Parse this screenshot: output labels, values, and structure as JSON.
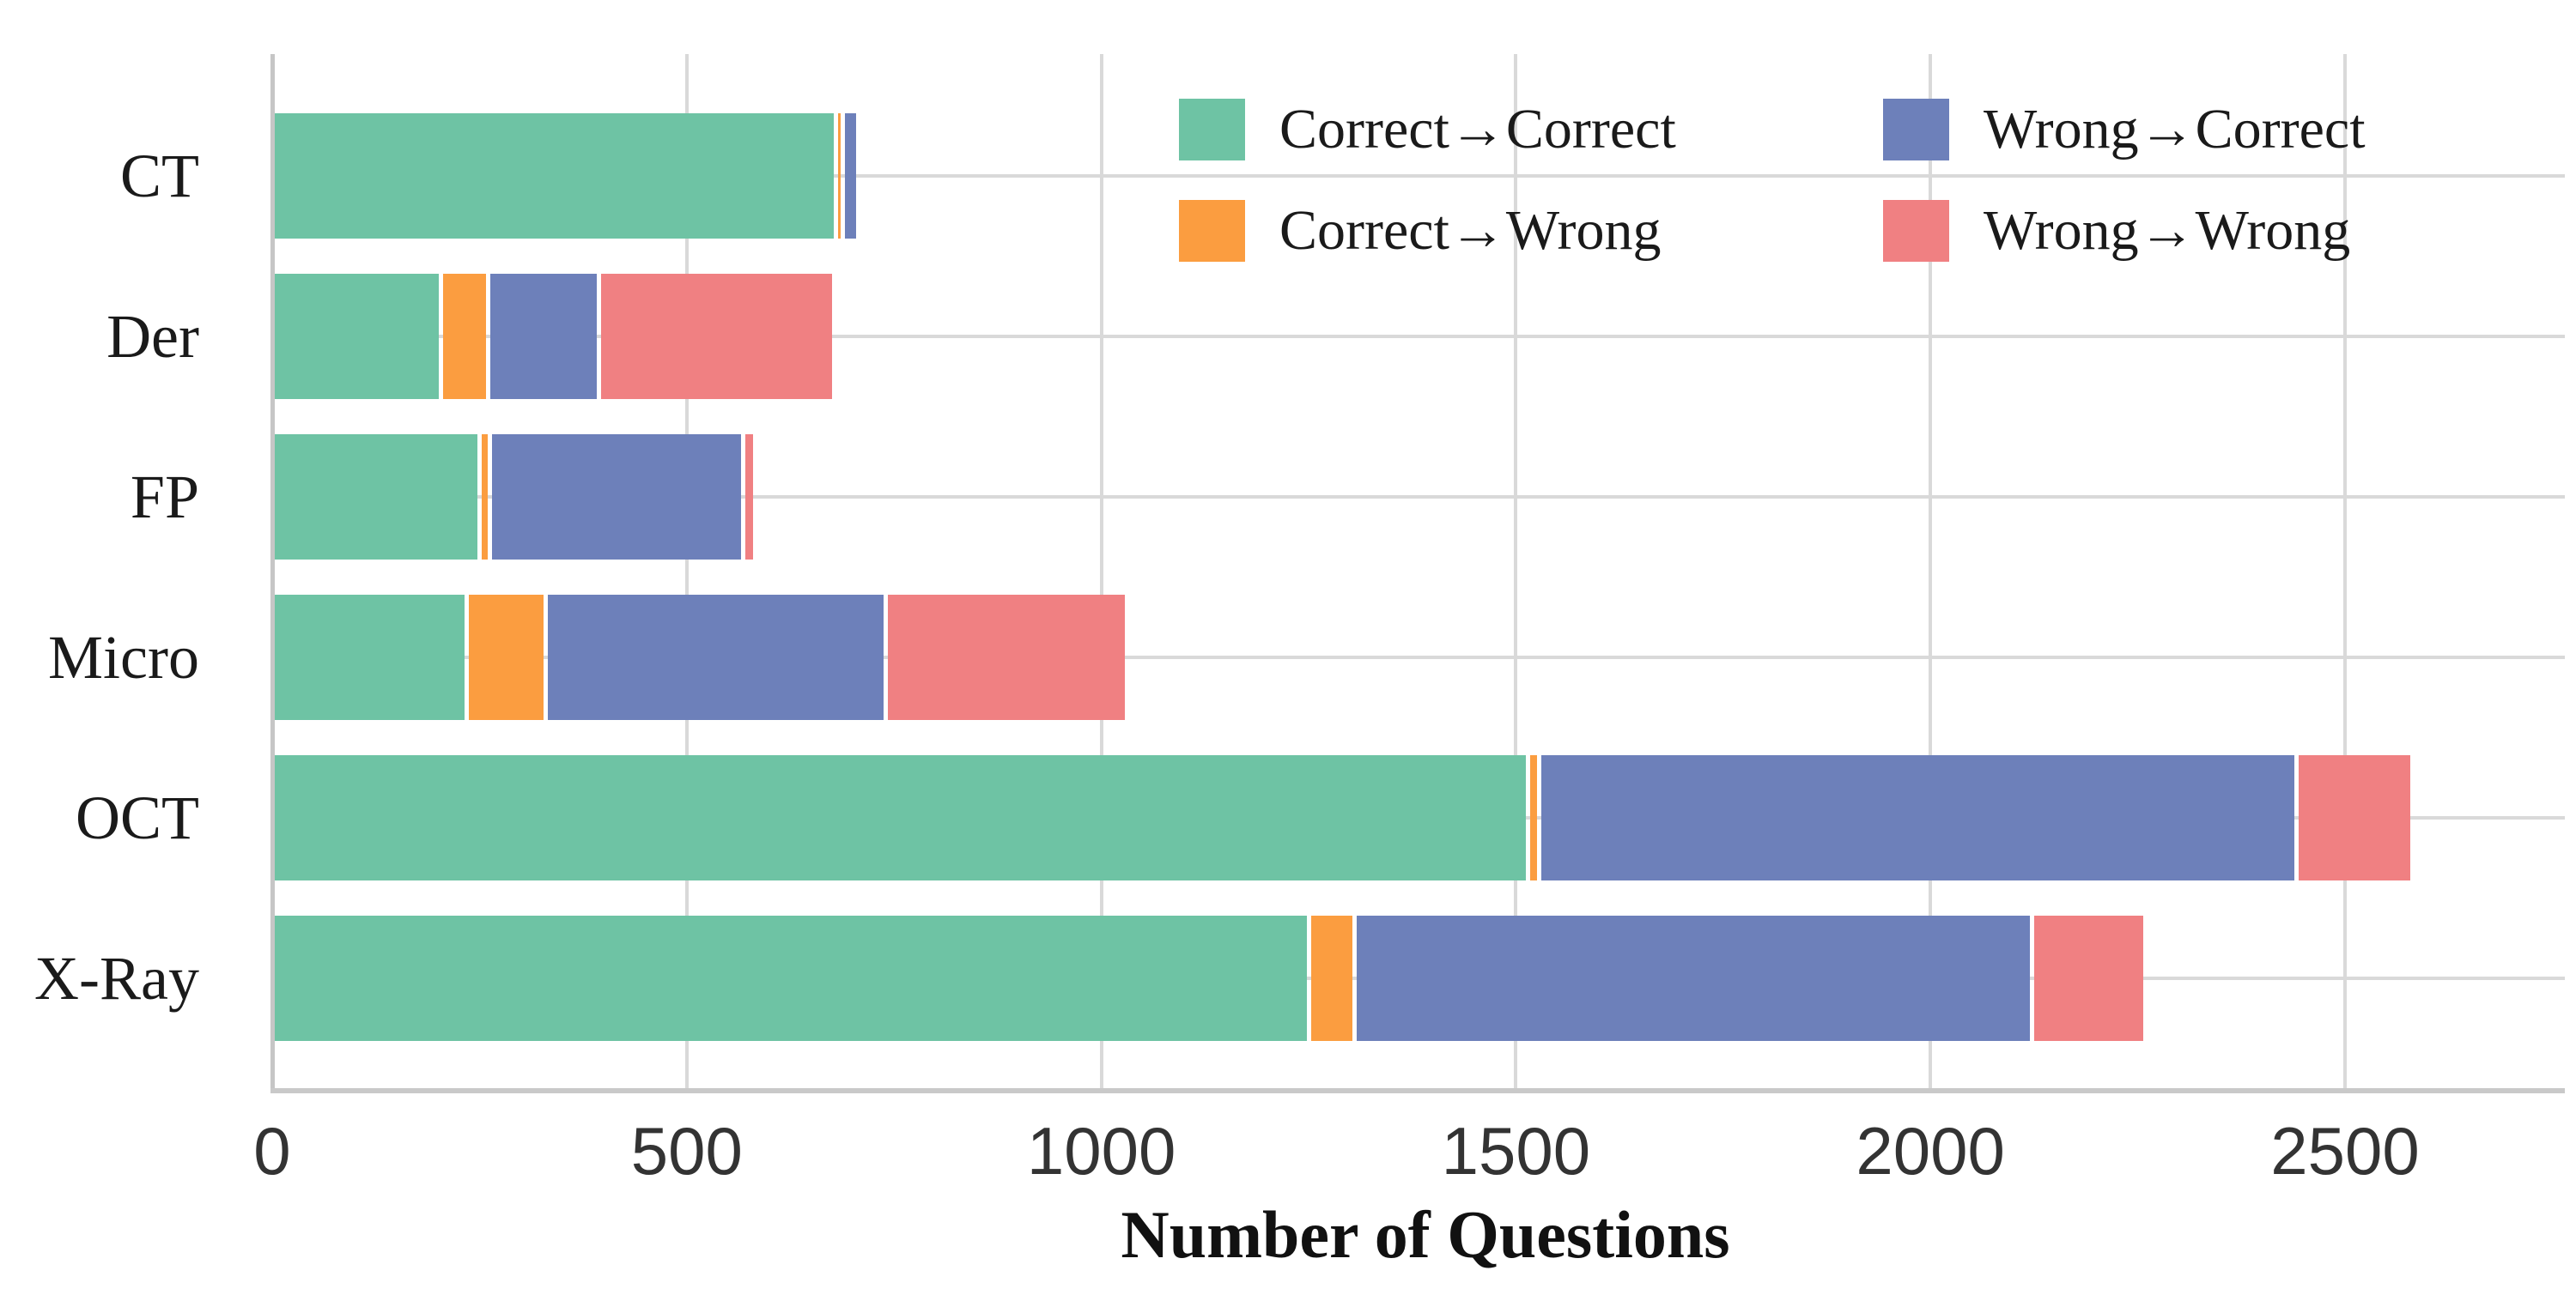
{
  "chart_data": {
    "type": "bar",
    "orientation": "horizontal",
    "stacked": true,
    "title": "",
    "xlabel": "Number of Questions",
    "ylabel": "",
    "xlim": [
      0,
      2758
    ],
    "xticks": [
      0,
      500,
      1000,
      1500,
      2000,
      2500
    ],
    "grid": true,
    "legend_position": "upper-right, 2 columns, no frame",
    "categories": [
      "CT",
      "Der",
      "FP",
      "Micro",
      "OCT",
      "X-Ray"
    ],
    "series": [
      {
        "name": "Correct→Correct",
        "color": "#6ec3a4",
        "values": [
          680,
          204,
          250,
          235,
          1515,
          1250
        ]
      },
      {
        "name": "Correct→Wrong",
        "color": "#fb9d40",
        "values": [
          8,
          56,
          13,
          95,
          13,
          55
        ]
      },
      {
        "name": "Wrong→Correct",
        "color": "#6d80ba",
        "values": [
          19,
          134,
          305,
          410,
          913,
          818
        ]
      },
      {
        "name": "Wrong→Wrong",
        "color": "#f08082",
        "values": [
          0,
          284,
          15,
          291,
          140,
          136
        ]
      }
    ],
    "totals": [
      707,
      678,
      583,
      1031,
      2581,
      2259
    ]
  },
  "legend": {
    "column1": [
      "Correct→Correct",
      "Correct→Wrong"
    ],
    "column2": [
      "Wrong→Correct",
      "Wrong→Wrong"
    ]
  },
  "style_colors": {
    "gridline": "#d9d9d9",
    "axis": "#c9c9c9",
    "text": "#1a1a1a",
    "background": "#ffffff"
  }
}
